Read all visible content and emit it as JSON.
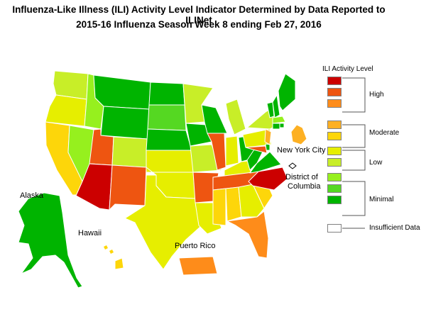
{
  "title": {
    "line1": "Influenza-Like Illness (ILI) Activity Level Indicator Determined by Data Reported to ILINet",
    "line2": "2015-16  Influenza Season Week  8 ending Feb 27, 2016"
  },
  "map_labels": {
    "alaska": "Alaska",
    "hawaii": "Hawaii",
    "puerto_rico": "Puerto Rico",
    "new_york_city": "New York City",
    "dc_line1": "District of",
    "dc_line2": "Columbia"
  },
  "legend": {
    "title": "ILI Activity Level",
    "levels": [
      {
        "level": 10,
        "color": "#cc0000"
      },
      {
        "level": 9,
        "color": "#ee5511"
      },
      {
        "level": 8,
        "color": "#fe8c1a"
      },
      {
        "level": 7,
        "color": "#fdb023"
      },
      {
        "level": 6,
        "color": "#fdd60a"
      },
      {
        "level": 5,
        "color": "#e6ee00"
      },
      {
        "level": 4,
        "color": "#c8ee28"
      },
      {
        "level": 3,
        "color": "#96f01e"
      },
      {
        "level": 2,
        "color": "#55d822"
      },
      {
        "level": 1,
        "color": "#00b400"
      },
      {
        "level": 0,
        "color": "#ffffff"
      }
    ],
    "groups": {
      "high": "High",
      "moderate": "Moderate",
      "low": "Low",
      "minimal": "Minimal",
      "insufficient": "Insufficient Data"
    }
  },
  "state_levels": {
    "WA": 4,
    "OR": 5,
    "CA": 6,
    "NV": 3,
    "ID": 3,
    "MT": 1,
    "WY": 1,
    "UT": 9,
    "AZ": 10,
    "CO": 4,
    "NM": 9,
    "ND": 1,
    "SD": 2,
    "NE": 1,
    "KS": 5,
    "OK": 5,
    "TX": 5,
    "MN": 4,
    "IA": 1,
    "MO": 4,
    "AR": 9,
    "LA": 5,
    "WI": 1,
    "IL": 9,
    "MI": 4,
    "IN": 5,
    "OH": 1,
    "KY": 5,
    "TN": 9,
    "MS": 6,
    "AL": 6,
    "GA": 5,
    "FL": 8,
    "SC": 6,
    "NC": 10,
    "VA": 1,
    "WV": 1,
    "PA": 5,
    "NY": 4,
    "VT": 1,
    "NH": 1,
    "ME": 1,
    "MA": 3,
    "CT": 1,
    "RI": 1,
    "NJ": 7,
    "DE": 1,
    "MD": 9,
    "AK": 1,
    "HI": 6,
    "PR": 8,
    "NYC": 7,
    "DC": 0
  }
}
